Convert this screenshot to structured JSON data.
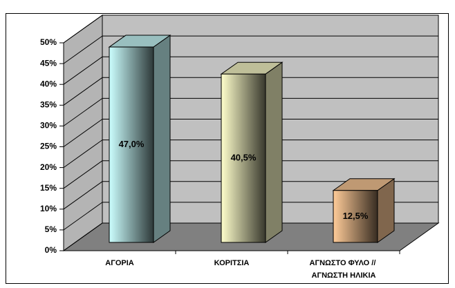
{
  "chart_data": {
    "type": "bar3d",
    "categories": [
      "ΑΓΟΡΙΑ",
      "ΚΟΡΙΤΣΙΑ",
      "ΑΓΝΩΣΤΟ ΦΥΛΟ //\nΑΓΝΩΣΤΗ ΗΛΙΚΙΑ"
    ],
    "values": [
      47.0,
      40.5,
      12.5
    ],
    "value_labels": [
      "47,0%",
      "40,5%",
      "12,5%"
    ],
    "colors": [
      "#ccffff",
      "#ffffcc",
      "#ffcc99"
    ],
    "ylim": [
      0,
      50
    ],
    "yticks": [
      {
        "value": 0,
        "label": "0%"
      },
      {
        "value": 5,
        "label": "5%"
      },
      {
        "value": 10,
        "label": "10%"
      },
      {
        "value": 15,
        "label": "15%"
      },
      {
        "value": 20,
        "label": "20%"
      },
      {
        "value": 25,
        "label": "25%"
      },
      {
        "value": 30,
        "label": "30%"
      },
      {
        "value": 35,
        "label": "35%"
      },
      {
        "value": 40,
        "label": "40%"
      },
      {
        "value": 45,
        "label": "45%"
      },
      {
        "value": 50,
        "label": "50%"
      }
    ],
    "grid": true
  }
}
